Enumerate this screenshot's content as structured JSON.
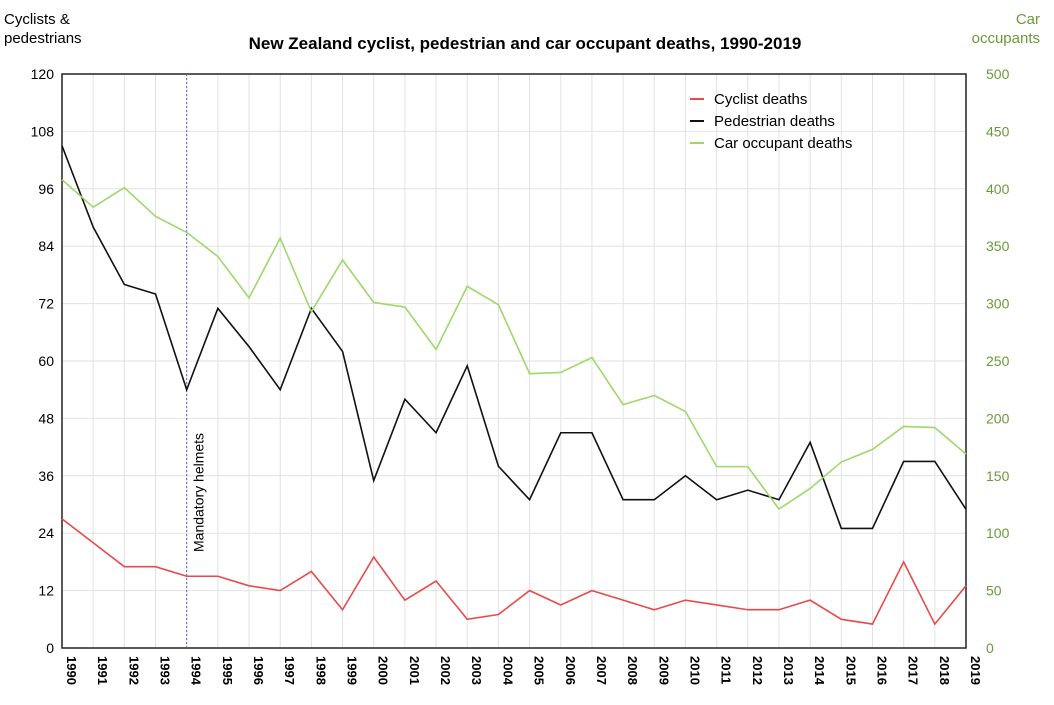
{
  "chart_data": {
    "type": "line",
    "title": "New Zealand cyclist, pedestrian and car occupant deaths, 1990-2019",
    "ylabel_left": "Cyclists & pedestrians",
    "ylabel_right": "Car occupants",
    "ylim_left": [
      0,
      120
    ],
    "ylim_right": [
      0,
      500
    ],
    "yticks_left": [
      0,
      12,
      24,
      36,
      48,
      60,
      72,
      84,
      96,
      108,
      120
    ],
    "yticks_right": [
      0,
      50,
      100,
      150,
      200,
      250,
      300,
      350,
      400,
      450,
      500
    ],
    "x": [
      1990,
      1991,
      1992,
      1993,
      1994,
      1995,
      1996,
      1997,
      1998,
      1999,
      2000,
      2001,
      2002,
      2003,
      2004,
      2005,
      2006,
      2007,
      2008,
      2009,
      2010,
      2011,
      2012,
      2013,
      2014,
      2015,
      2016,
      2017,
      2018,
      2019
    ],
    "grid": true,
    "legend_position": "top-right",
    "annotation": {
      "label": "Mandatory helmets",
      "x": 1994
    },
    "series": [
      {
        "name": "Cyclist deaths",
        "axis": "left",
        "color": "#e84a4a",
        "values": [
          27,
          22,
          17,
          17,
          15,
          15,
          13,
          12,
          16,
          8,
          19,
          10,
          14,
          6,
          7,
          12,
          9,
          12,
          10,
          8,
          10,
          9,
          8,
          8,
          10,
          6,
          5,
          18,
          5,
          13
        ]
      },
      {
        "name": "Pedestrian deaths",
        "axis": "left",
        "color": "#111111",
        "values": [
          105,
          88,
          76,
          74,
          54,
          71,
          63,
          54,
          71,
          62,
          35,
          52,
          45,
          59,
          38,
          31,
          45,
          45,
          31,
          31,
          36,
          31,
          33,
          31,
          43,
          25,
          25,
          39,
          39,
          29
        ]
      },
      {
        "name": "Car occupant deaths",
        "axis": "right",
        "color": "#9ed86a",
        "values": [
          408,
          384,
          401,
          376,
          362,
          341,
          305,
          357,
          293,
          338,
          301,
          297,
          260,
          315,
          299,
          239,
          240,
          253,
          212,
          220,
          206,
          158,
          158,
          121,
          139,
          162,
          173,
          193,
          192,
          169
        ]
      }
    ],
    "right_axis_color": "#6a9a3a"
  }
}
